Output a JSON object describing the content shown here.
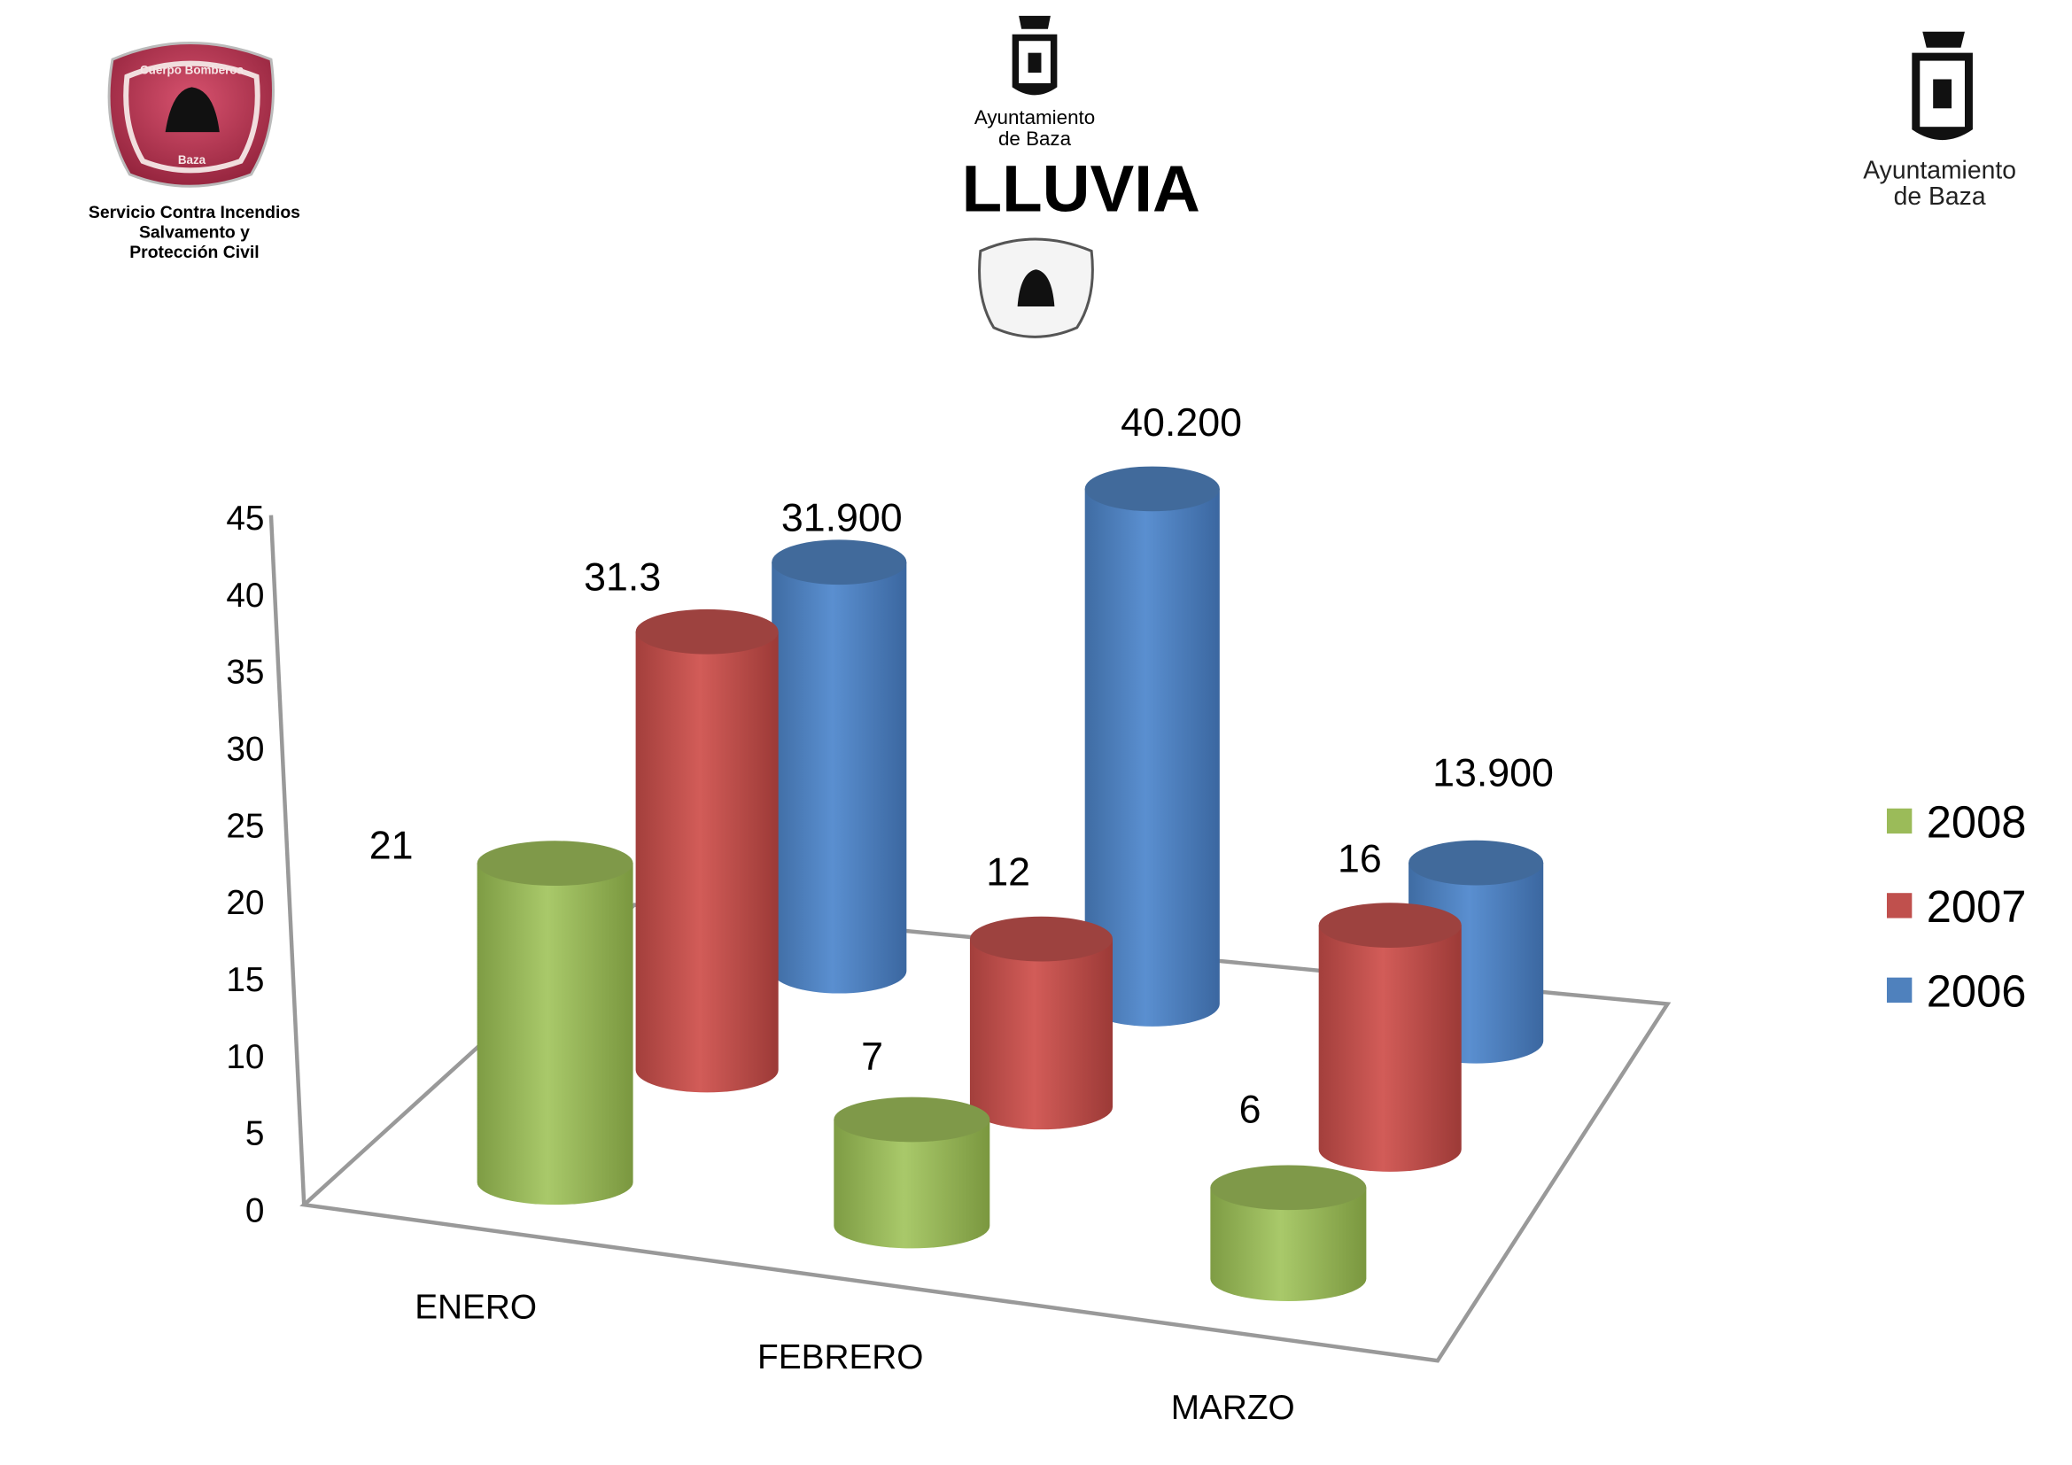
{
  "header": {
    "title": "LLUVIA",
    "left_logo_text": [
      "Servicio Contra Incendios",
      "Salvamento y",
      "Protección Civil"
    ],
    "center_logo_text": [
      "Ayuntamiento",
      "de Baza"
    ],
    "right_logo_text": [
      "Ayuntamiento",
      "de Baza"
    ],
    "badge_text": [
      "Cuerpo Bomberos",
      "Baza"
    ]
  },
  "chart_data": {
    "type": "bar",
    "style": "3d-cylinder",
    "title": "LLUVIA",
    "categories": [
      "ENERO",
      "FEBRERO",
      "MARZO"
    ],
    "series": [
      {
        "name": "2008",
        "color": "#9bbb59",
        "values": [
          21,
          7,
          6
        ],
        "labels": [
          "21",
          "7",
          "6"
        ]
      },
      {
        "name": "2007",
        "color": "#c0504d",
        "values": [
          31.3,
          12,
          16
        ],
        "labels": [
          "31.3",
          "12",
          "16"
        ]
      },
      {
        "name": "2006",
        "color": "#4f81bd",
        "values": [
          31.9,
          40.2,
          13.9
        ],
        "labels": [
          "31.900",
          "40.200",
          "13.900"
        ]
      }
    ],
    "yticks": [
      "0",
      "5",
      "10",
      "15",
      "20",
      "25",
      "30",
      "35",
      "40",
      "45"
    ],
    "ylim": [
      0,
      45
    ],
    "xlabel": "",
    "ylabel": "",
    "grid": false,
    "legend": "right"
  }
}
